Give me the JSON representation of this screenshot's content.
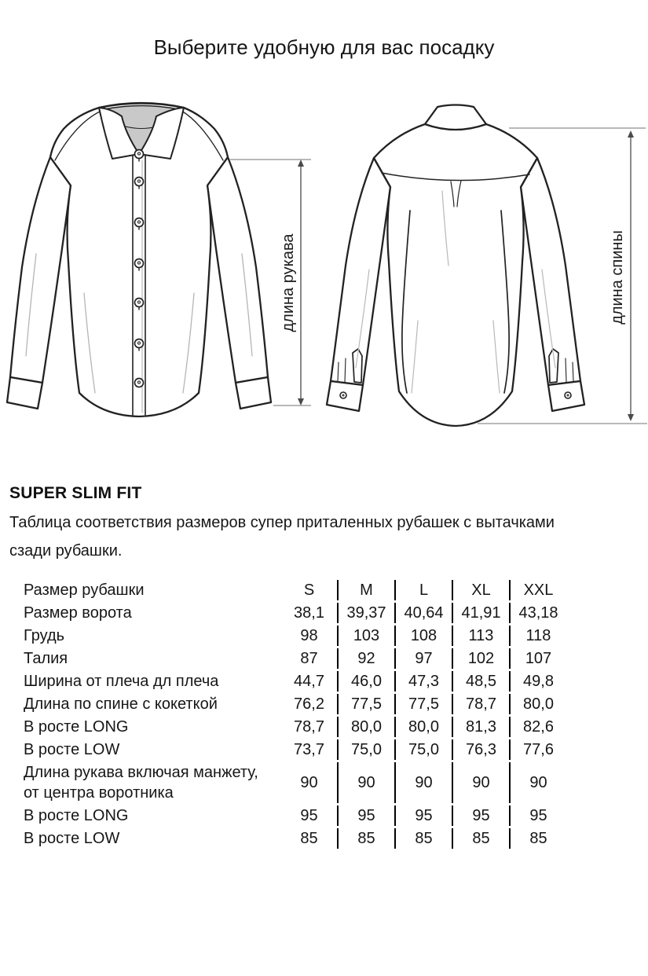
{
  "page": {
    "title": "Выберите удобную для вас посадку"
  },
  "diagram": {
    "front_shirt": "front-view-shirt-sketch",
    "back_shirt": "back-view-shirt-sketch",
    "sleeve_length_label": "длина рукава",
    "back_length_label": "длина спины",
    "line_color": "#4a4a4a",
    "extension_line_color": "#8f8f8f",
    "sketch_stroke_color": "#222222",
    "collar_inner_color": "#c9c9c9"
  },
  "section": {
    "heading": "SUPER SLIM FIT",
    "description_lines": [
      "Таблица соответствия размеров супер приталенных рубашек с вытачками",
      "сзади рубашки."
    ]
  },
  "table": {
    "rows": [
      {
        "label": "Размер рубашки",
        "values": [
          "S",
          "M",
          "L",
          "XL",
          "XXL"
        ]
      },
      {
        "label": "Размер ворота",
        "values": [
          "38,1",
          "39,37",
          "40,64",
          "41,91",
          "43,18"
        ]
      },
      {
        "label": "Грудь",
        "values": [
          "98",
          "103",
          "108",
          "113",
          "118"
        ]
      },
      {
        "label": "Талия",
        "values": [
          "87",
          "92",
          "97",
          "102",
          "107"
        ]
      },
      {
        "label": "Ширина от плеча дл плеча",
        "values": [
          "44,7",
          "46,0",
          "47,3",
          "48,5",
          "49,8"
        ]
      },
      {
        "label": "Длина по спине с кокеткой",
        "values": [
          "76,2",
          "77,5",
          "77,5",
          "78,7",
          "80,0"
        ]
      },
      {
        "label": "В росте LONG",
        "values": [
          "78,7",
          "80,0",
          "80,0",
          "81,3",
          "82,6"
        ]
      },
      {
        "label": "В росте LOW",
        "values": [
          "73,7",
          "75,0",
          "75,0",
          "76,3",
          "77,6"
        ]
      },
      {
        "label": "Длина рукава включая манжету,\nот центра воротника",
        "values": [
          "90",
          "90",
          "90",
          "90",
          "90"
        ]
      },
      {
        "label": "В росте LONG",
        "values": [
          "95",
          "95",
          "95",
          "95",
          "95"
        ]
      },
      {
        "label": "В росте LOW",
        "values": [
          "85",
          "85",
          "85",
          "85",
          "85"
        ]
      }
    ]
  }
}
